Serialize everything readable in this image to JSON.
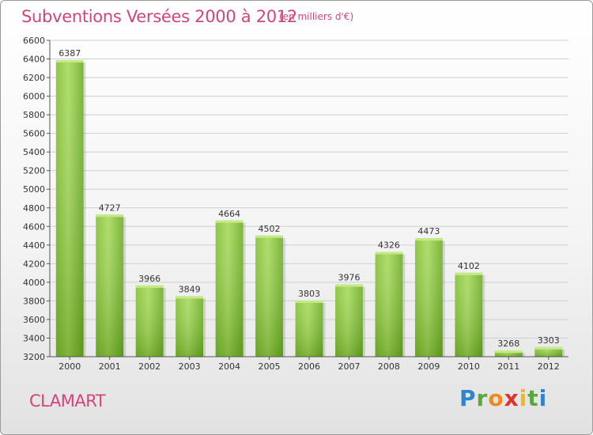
{
  "header": {
    "title": "Subventions Versées 2000 à 2012",
    "unit_note": "(en milliers d'€)"
  },
  "footer": {
    "commune": "CLAMART",
    "logo_text": "Proxiti"
  },
  "colors": {
    "title": "#d0457a",
    "bar_light": "#a6d85a",
    "bar_dark": "#5c9e14",
    "grid": "#cfcfcf"
  },
  "chart_data": {
    "type": "bar",
    "title": "Subventions Versées 2000 à 2012",
    "subtitle": "(en milliers d'€)",
    "xlabel": "",
    "ylabel": "",
    "categories": [
      "2000",
      "2001",
      "2002",
      "2003",
      "2004",
      "2005",
      "2006",
      "2007",
      "2008",
      "2009",
      "2010",
      "2011",
      "2012"
    ],
    "values": [
      6387,
      4727,
      3966,
      3849,
      4664,
      4502,
      3803,
      3976,
      4326,
      4473,
      4102,
      3268,
      3303
    ],
    "data_labels": [
      "6387",
      "4727",
      "3966",
      "3849",
      "4664",
      "4502",
      "3803",
      "3976",
      "4326",
      "4473",
      "4102",
      "3268",
      "3303"
    ],
    "ylim": [
      3200,
      6600
    ],
    "yticks": [
      3200,
      3400,
      3600,
      3800,
      4000,
      4200,
      4400,
      4600,
      4800,
      5000,
      5200,
      5400,
      5600,
      5800,
      6000,
      6200,
      6400,
      6600
    ],
    "grid": true,
    "legend": "none"
  }
}
